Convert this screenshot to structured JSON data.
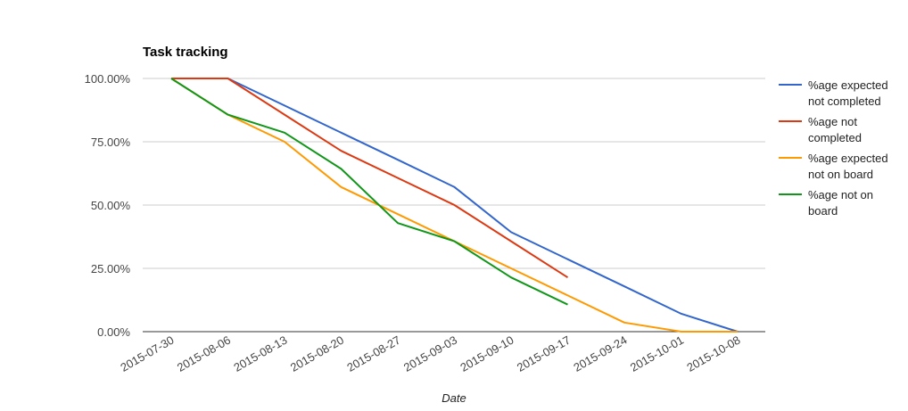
{
  "chart_data": {
    "type": "line",
    "title": "Task tracking",
    "xlabel": "Date",
    "ylabel": "",
    "ylim": [
      0,
      100
    ],
    "y_ticks": [
      "0.00%",
      "25.00%",
      "50.00%",
      "75.00%",
      "100.00%"
    ],
    "y_tick_values": [
      0,
      25,
      50,
      75,
      100
    ],
    "categories": [
      "2015-07-30",
      "2015-08-06",
      "2015-08-13",
      "2015-08-20",
      "2015-08-27",
      "2015-09-03",
      "2015-09-10",
      "2015-09-17",
      "2015-09-24",
      "2015-10-01",
      "2015-10-08"
    ],
    "grid": true,
    "legend_position": "right",
    "series": [
      {
        "name": "%age expected not completed",
        "legend_lines": [
          "%age expected",
          "not completed"
        ],
        "color": "#3366cc",
        "values": [
          100,
          100,
          89.3,
          78.6,
          67.9,
          57.1,
          39.3,
          28.6,
          17.9,
          7.1,
          0
        ]
      },
      {
        "name": "%age not completed",
        "legend_lines": [
          "%age not",
          "completed"
        ],
        "color": "#dc3912",
        "values": [
          100,
          100,
          85.7,
          71.4,
          60.7,
          50.0,
          35.7,
          21.4,
          null,
          null,
          null
        ]
      },
      {
        "name": "%age expected not on board",
        "legend_lines": [
          "%age expected",
          "not on board"
        ],
        "color": "#ff9900",
        "values": [
          100,
          85.7,
          75.0,
          57.1,
          46.4,
          35.7,
          25.0,
          14.3,
          3.6,
          0,
          0
        ]
      },
      {
        "name": "%age not on board",
        "legend_lines": [
          "%age not on",
          "board"
        ],
        "color": "#109618",
        "values": [
          100,
          85.7,
          78.6,
          64.3,
          42.9,
          35.7,
          21.4,
          10.7,
          null,
          null,
          null
        ]
      }
    ]
  }
}
